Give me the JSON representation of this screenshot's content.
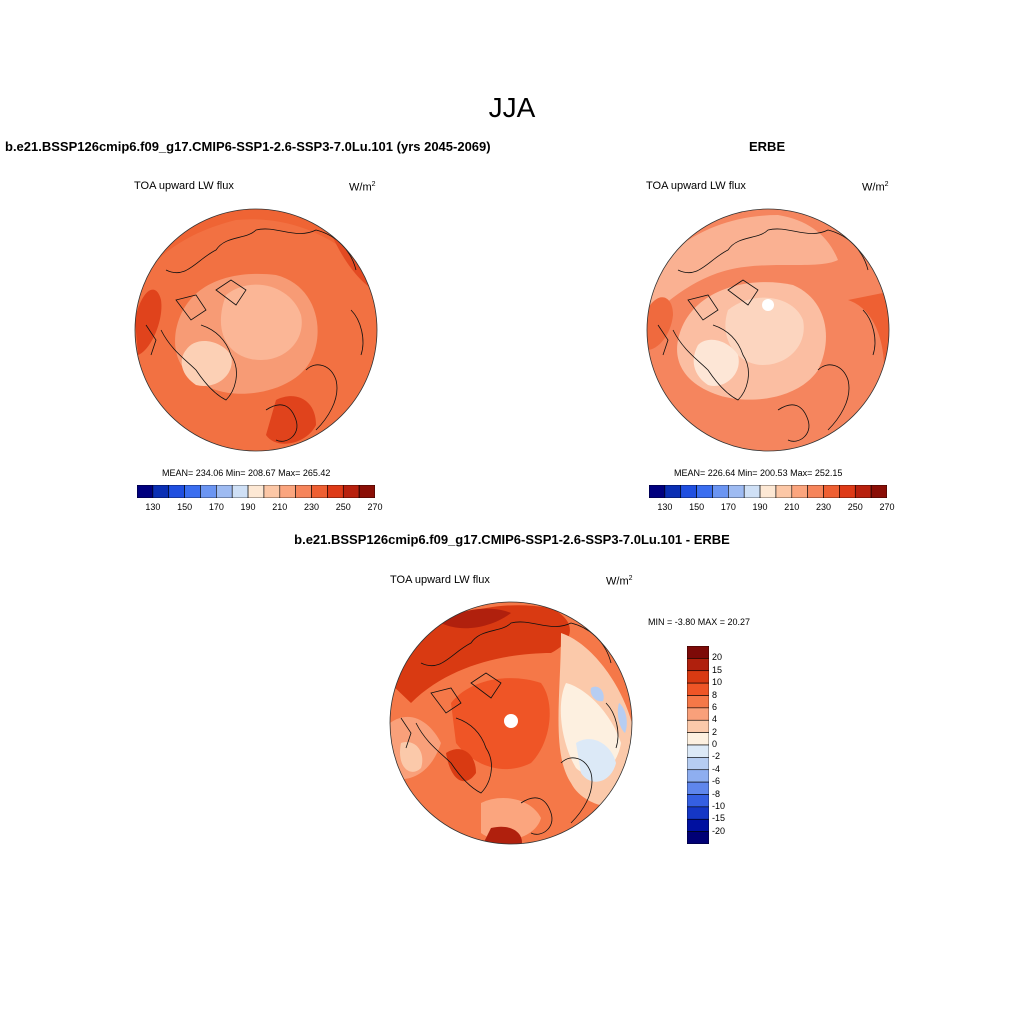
{
  "figure": {
    "season": "JJA"
  },
  "panels": {
    "model": {
      "title": "b.e21.BSSP126cmip6.f09_g17.CMIP6-SSP1-2.6-SSP3-7.0Lu.101 (yrs 2045-2069)",
      "variable": "TOA upward LW flux",
      "units_base": "W/m",
      "units_exp": "2",
      "stats": "MEAN= 234.06  Min= 208.67  Max= 265.42"
    },
    "obs": {
      "title": "ERBE",
      "variable": "TOA upward LW flux",
      "units_base": "W/m",
      "units_exp": "2",
      "stats": "MEAN= 226.64  Min= 200.53  Max= 252.15"
    },
    "diff": {
      "title": "b.e21.BSSP126cmip6.f09_g17.CMIP6-SSP1-2.6-SSP3-7.0Lu.101 - ERBE",
      "variable": "TOA upward LW flux",
      "units_base": "W/m",
      "units_exp": "2",
      "stats": "MIN =  -3.80 MAX =  20.27"
    }
  },
  "colorbar_abs": {
    "colors": [
      "#00007f",
      "#0a2fb4",
      "#1f4fe0",
      "#3a6ef0",
      "#6b95f2",
      "#9ebbf2",
      "#cfe0f6",
      "#fde8d4",
      "#fcc7a6",
      "#fba57e",
      "#f6845a",
      "#ee5f32",
      "#de3a17",
      "#b8210e",
      "#8a0e06"
    ],
    "tick_labels": [
      "130",
      "150",
      "170",
      "190",
      "210",
      "230",
      "250",
      "270"
    ]
  },
  "colorbar_diff": {
    "colors": [
      "#7d0a08",
      "#b0200d",
      "#d93a12",
      "#ef5526",
      "#f57848",
      "#f9a07a",
      "#fbc9aa",
      "#fdf0e0",
      "#dce9f7",
      "#b6cdf2",
      "#8eaef0",
      "#5f86ec",
      "#355fe2",
      "#1537c6",
      "#0010a0",
      "#000075"
    ],
    "labels": [
      "20",
      "15",
      "10",
      "8",
      "6",
      "4",
      "2",
      "0",
      "-2",
      "-4",
      "-6",
      "-8",
      "-10",
      "-15",
      "-20"
    ]
  }
}
